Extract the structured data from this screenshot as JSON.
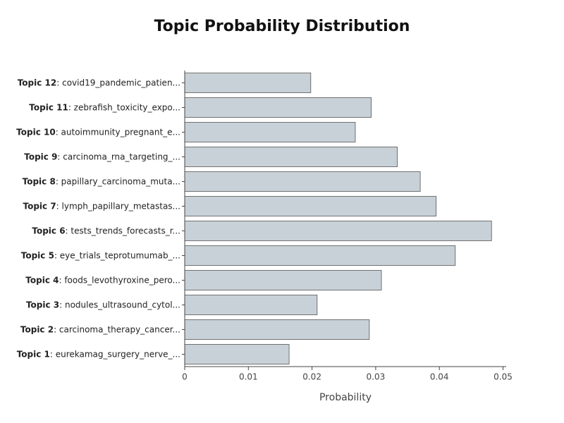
{
  "chart_data": {
    "type": "barh",
    "title": "Topic Probability Distribution",
    "x_label": "Probability",
    "categories": [
      "Topic 1: eurekamag_surgery_nerve_...",
      "Topic 2: carcinoma_therapy_cancer...",
      "Topic 3: nodules_ultrasound_cytol...",
      "Topic 4: foods_levothyroxine_pero...",
      "Topic 5: eye_trials_teprotumumab_...",
      "Topic 6: tests_trends_forecasts_r...",
      "Topic 7: lymph_papillary_metastas...",
      "Topic 8: papillary_carcinoma_muta...",
      "Topic 9: carcinoma_rna_targeting_...",
      "Topic 10: autoimmunity_pregnant_e...",
      "Topic 11: zebrafish_toxicity_expo...",
      "Topic 12: covid19_pandemic_patien..."
    ],
    "values": [
      0.0164,
      0.029,
      0.0208,
      0.0309,
      0.0425,
      0.0482,
      0.0395,
      0.037,
      0.0334,
      0.0268,
      0.0293,
      0.0198
    ],
    "color": "#c8d1d7",
    "xlim": [
      0,
      0.0505
    ],
    "xticks": [
      0,
      0.01,
      0.02,
      0.03,
      0.04,
      0.05
    ],
    "grid": false
  }
}
